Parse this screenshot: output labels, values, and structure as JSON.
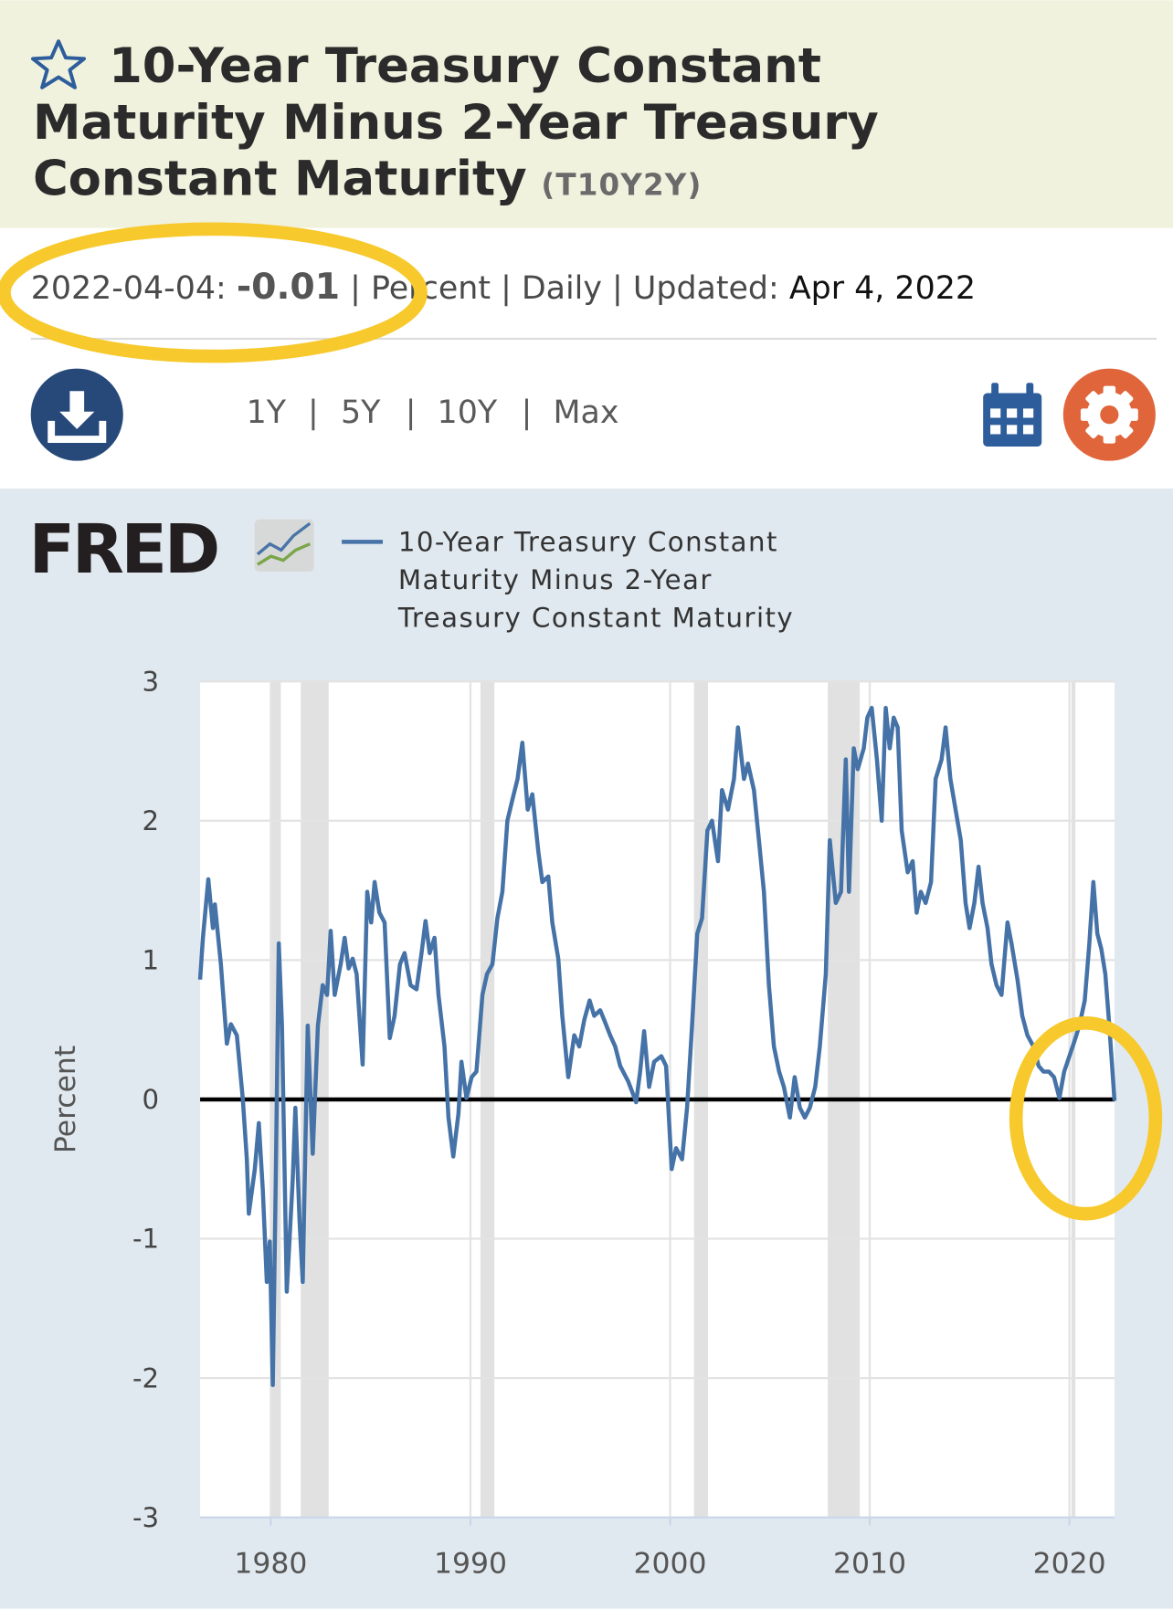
{
  "header": {
    "title": "10-Year Treasury Constant Maturity Minus 2-Year Treasury Constant Maturity",
    "ticker": "(T10Y2Y)"
  },
  "meta": {
    "date": "2022-04-04:",
    "value": "-0.01",
    "separator": "|",
    "units": "Percent",
    "frequency": "Daily",
    "updated_label": "Updated:",
    "updated": "Apr 4, 2022"
  },
  "range": {
    "options": [
      "1Y",
      "5Y",
      "10Y",
      "Max"
    ],
    "separator": "|"
  },
  "logo": "FRED",
  "chart_data": {
    "type": "line",
    "y_label": "Percent",
    "series": [
      {
        "name": "10-Year Treasury Constant Maturity Minus 2-Year Treasury Constant Maturity",
        "color": "#4572a7",
        "x": [
          1976.46,
          1976.6,
          1976.87,
          1977.1,
          1977.2,
          1977.5,
          1977.8,
          1978.0,
          1978.3,
          1978.6,
          1978.8,
          1978.9,
          1979.2,
          1979.4,
          1979.6,
          1979.8,
          1979.95,
          1980.1,
          1980.25,
          1980.4,
          1980.56,
          1980.8,
          1981.1,
          1981.23,
          1981.44,
          1981.6,
          1981.85,
          1982.1,
          1982.36,
          1982.6,
          1982.82,
          1983.0,
          1983.2,
          1983.5,
          1983.7,
          1983.9,
          1984.1,
          1984.3,
          1984.6,
          1984.83,
          1985.03,
          1985.2,
          1985.44,
          1985.7,
          1985.96,
          1986.2,
          1986.47,
          1986.7,
          1987.0,
          1987.3,
          1987.55,
          1987.75,
          1987.96,
          1988.2,
          1988.4,
          1988.7,
          1988.9,
          1989.14,
          1989.4,
          1989.55,
          1989.8,
          1990.06,
          1990.3,
          1990.6,
          1990.83,
          1991.1,
          1991.35,
          1991.6,
          1991.85,
          1992.1,
          1992.36,
          1992.6,
          1992.87,
          1993.1,
          1993.4,
          1993.6,
          1993.9,
          1994.1,
          1994.4,
          1994.6,
          1994.9,
          1995.2,
          1995.45,
          1995.7,
          1995.97,
          1996.2,
          1996.5,
          1996.7,
          1997.0,
          1997.25,
          1997.5,
          1997.9,
          1998.3,
          1998.5,
          1998.7,
          1998.95,
          1999.2,
          1999.56,
          1999.8,
          2000.08,
          2000.3,
          2000.6,
          2000.85,
          2001.1,
          2001.36,
          2001.6,
          2001.87,
          2002.1,
          2002.4,
          2002.6,
          2002.9,
          2003.2,
          2003.4,
          2003.7,
          2003.9,
          2004.2,
          2004.45,
          2004.7,
          2004.95,
          2005.2,
          2005.46,
          2005.7,
          2006.0,
          2006.24,
          2006.5,
          2006.75,
          2007.0,
          2007.27,
          2007.5,
          2007.8,
          2008.0,
          2008.3,
          2008.56,
          2008.8,
          2008.96,
          2009.2,
          2009.4,
          2009.7,
          2009.88,
          2010.1,
          2010.36,
          2010.6,
          2010.8,
          2011.0,
          2011.2,
          2011.4,
          2011.6,
          2011.9,
          2012.15,
          2012.35,
          2012.56,
          2012.8,
          2013.07,
          2013.3,
          2013.6,
          2013.8,
          2014.04,
          2014.3,
          2014.56,
          2014.8,
          2015.0,
          2015.24,
          2015.45,
          2015.65,
          2015.9,
          2016.1,
          2016.35,
          2016.6,
          2016.9,
          2017.1,
          2017.4,
          2017.64,
          2017.9,
          2018.2,
          2018.46,
          2018.7,
          2018.97,
          2019.23,
          2019.5,
          2019.74,
          2020.0,
          2020.26,
          2020.5,
          2020.77,
          2021.0,
          2021.2,
          2021.4,
          2021.6,
          2021.8,
          2022.0,
          2022.26
        ],
        "values": [
          0.86,
          1.16,
          1.58,
          1.23,
          1.4,
          0.97,
          0.4,
          0.54,
          0.46,
          0.0,
          -0.43,
          -0.82,
          -0.5,
          -0.17,
          -0.65,
          -1.31,
          -1.02,
          -2.05,
          -0.57,
          1.12,
          0.53,
          -1.38,
          -0.57,
          -0.06,
          -0.87,
          -1.31,
          0.53,
          -0.39,
          0.53,
          0.82,
          0.75,
          1.21,
          0.75,
          0.97,
          1.16,
          0.94,
          1.01,
          0.9,
          0.25,
          1.49,
          1.27,
          1.56,
          1.34,
          1.27,
          0.44,
          0.6,
          0.97,
          1.05,
          0.82,
          0.79,
          1.05,
          1.28,
          1.05,
          1.16,
          0.75,
          0.38,
          -0.13,
          -0.41,
          -0.1,
          0.27,
          0.01,
          0.16,
          0.2,
          0.75,
          0.9,
          0.97,
          1.3,
          1.49,
          2.0,
          2.15,
          2.3,
          2.56,
          2.08,
          2.19,
          1.78,
          1.56,
          1.6,
          1.27,
          1.01,
          0.6,
          0.16,
          0.46,
          0.38,
          0.57,
          0.71,
          0.6,
          0.64,
          0.57,
          0.46,
          0.38,
          0.24,
          0.13,
          -0.02,
          0.2,
          0.49,
          0.09,
          0.27,
          0.31,
          0.24,
          -0.5,
          -0.35,
          -0.43,
          -0.06,
          0.53,
          1.19,
          1.3,
          1.93,
          2.0,
          1.71,
          2.22,
          2.08,
          2.3,
          2.67,
          2.3,
          2.41,
          2.22,
          1.86,
          1.49,
          0.82,
          0.38,
          0.2,
          0.09,
          -0.13,
          0.16,
          -0.06,
          -0.13,
          -0.06,
          0.09,
          0.38,
          0.9,
          1.86,
          1.41,
          1.49,
          2.44,
          1.49,
          2.52,
          2.37,
          2.52,
          2.74,
          2.81,
          2.44,
          2.0,
          2.81,
          2.52,
          2.74,
          2.67,
          1.93,
          1.63,
          1.71,
          1.34,
          1.49,
          1.41,
          1.56,
          2.3,
          2.44,
          2.67,
          2.3,
          2.08,
          1.86,
          1.41,
          1.23,
          1.41,
          1.67,
          1.41,
          1.23,
          0.97,
          0.82,
          0.75,
          1.27,
          1.12,
          0.86,
          0.6,
          0.46,
          0.38,
          0.24,
          0.2,
          0.2,
          0.16,
          0.01,
          0.2,
          0.31,
          0.42,
          0.53,
          0.71,
          1.12,
          1.56,
          1.19,
          1.08,
          0.9,
          0.53,
          -0.01
        ]
      }
    ],
    "recessions": [
      [
        1980.0,
        1980.5
      ],
      [
        1981.5,
        1982.9
      ],
      [
        1990.5,
        1991.2
      ],
      [
        2001.2,
        2001.9
      ],
      [
        2007.9,
        2009.5
      ],
      [
        2020.1,
        2020.3
      ]
    ],
    "recession_color": "#e1e1e1",
    "hline": 0,
    "xlim": [
      1976.46,
      2022.26
    ],
    "xticks": [
      1980,
      1990,
      2000,
      2010,
      2020
    ],
    "ylim": [
      -3,
      3
    ],
    "yticks": [
      -3,
      -2,
      -1,
      0,
      1,
      2,
      3
    ],
    "grid": true
  }
}
